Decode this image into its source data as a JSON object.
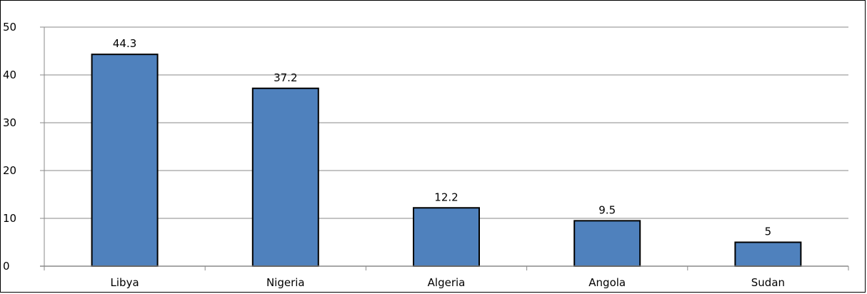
{
  "chart_data": {
    "type": "bar",
    "categories": [
      "Libya",
      "Nigeria",
      "Algeria",
      "Angola",
      "Sudan"
    ],
    "values": [
      44.3,
      37.2,
      12.2,
      9.5,
      5
    ],
    "data_labels": [
      "44.3",
      "37.2",
      "12.2",
      "9.5",
      "5"
    ],
    "ylim": [
      0,
      50
    ],
    "yticks": [
      "0",
      "10",
      "20",
      "30",
      "40",
      "50"
    ],
    "grid": true,
    "title": "",
    "xlabel": "",
    "ylabel": "",
    "colors": {
      "bar": "#4f81bd",
      "bar_edge": "#000000",
      "grid": "#8a8a8a",
      "axis": "#8a8a8a"
    }
  }
}
